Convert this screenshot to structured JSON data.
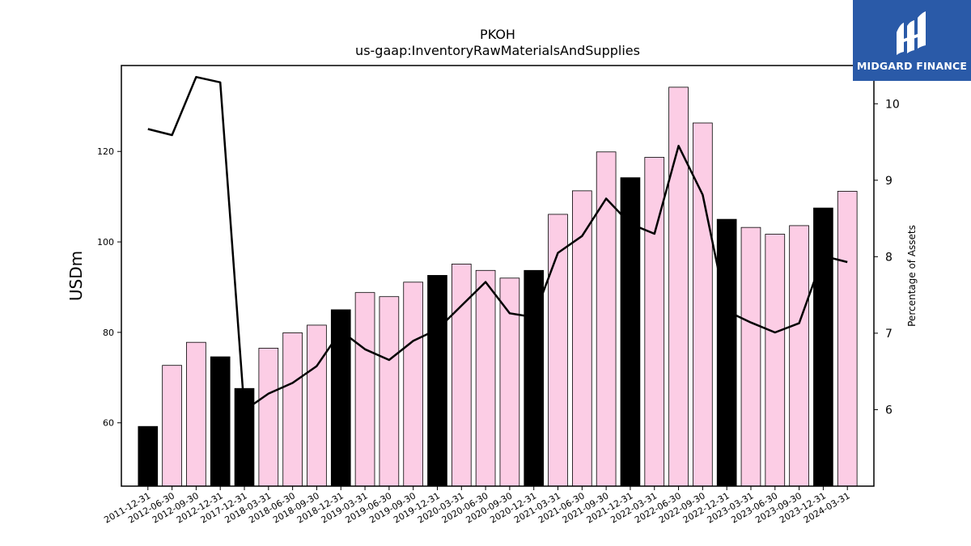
{
  "brand": {
    "name": "MIDGARD FINANCE",
    "logo_icon": "midgard-logo-icon"
  },
  "chart_data": {
    "type": "bar",
    "title": "PKOH",
    "subtitle": "us-gaap:InventoryRawMaterialsAndSupplies",
    "ylabel": "USDm",
    "y2label": "Percentage of Assets",
    "ylim": [
      46,
      139
    ],
    "y2lim": [
      5.0,
      10.5
    ],
    "yticks": [
      60,
      80,
      100,
      120
    ],
    "y2ticks": [
      6,
      7,
      8,
      9,
      10
    ],
    "categories": [
      "2011-12-31",
      "2012-06-30",
      "2012-09-30",
      "2012-12-31",
      "2017-12-31",
      "2018-03-31",
      "2018-06-30",
      "2018-09-30",
      "2018-12-31",
      "2019-03-31",
      "2019-06-30",
      "2019-09-30",
      "2019-12-31",
      "2020-03-31",
      "2020-06-30",
      "2020-09-30",
      "2020-12-31",
      "2021-03-31",
      "2021-06-30",
      "2021-09-30",
      "2021-12-31",
      "2022-03-31",
      "2022-06-30",
      "2022-09-30",
      "2022-12-31",
      "2023-03-31",
      "2023-06-30",
      "2023-09-30",
      "2023-12-31",
      "2024-03-31"
    ],
    "series": [
      {
        "kind": "bar",
        "values": [
          59.2,
          72.7,
          77.8,
          74.6,
          67.6,
          76.5,
          79.9,
          81.6,
          85.0,
          88.8,
          87.9,
          91.1,
          92.6,
          95.1,
          93.7,
          92.0,
          93.7,
          106.1,
          111.3,
          119.9,
          114.2,
          118.7,
          134.2,
          126.3,
          105.0,
          103.2,
          101.7,
          103.6,
          107.5,
          111.2
        ],
        "annual_flags": [
          true,
          false,
          false,
          true,
          true,
          false,
          false,
          false,
          true,
          false,
          false,
          false,
          true,
          false,
          false,
          false,
          true,
          false,
          false,
          false,
          true,
          false,
          false,
          false,
          true,
          false,
          false,
          false,
          true,
          false
        ]
      },
      {
        "kind": "line",
        "axis": "right",
        "values": [
          9.67,
          9.59,
          10.35,
          10.28,
          5.99,
          6.21,
          6.35,
          6.57,
          7.03,
          6.79,
          6.65,
          6.9,
          7.05,
          7.36,
          7.67,
          7.26,
          7.21,
          8.05,
          8.27,
          8.76,
          8.43,
          8.3,
          9.45,
          8.81,
          7.29,
          7.14,
          7.01,
          7.13,
          8.01,
          7.93
        ]
      }
    ],
    "colors": {
      "annual_bar": "#000000",
      "quarter_bar": "#fccde5",
      "line": "#000000"
    }
  }
}
